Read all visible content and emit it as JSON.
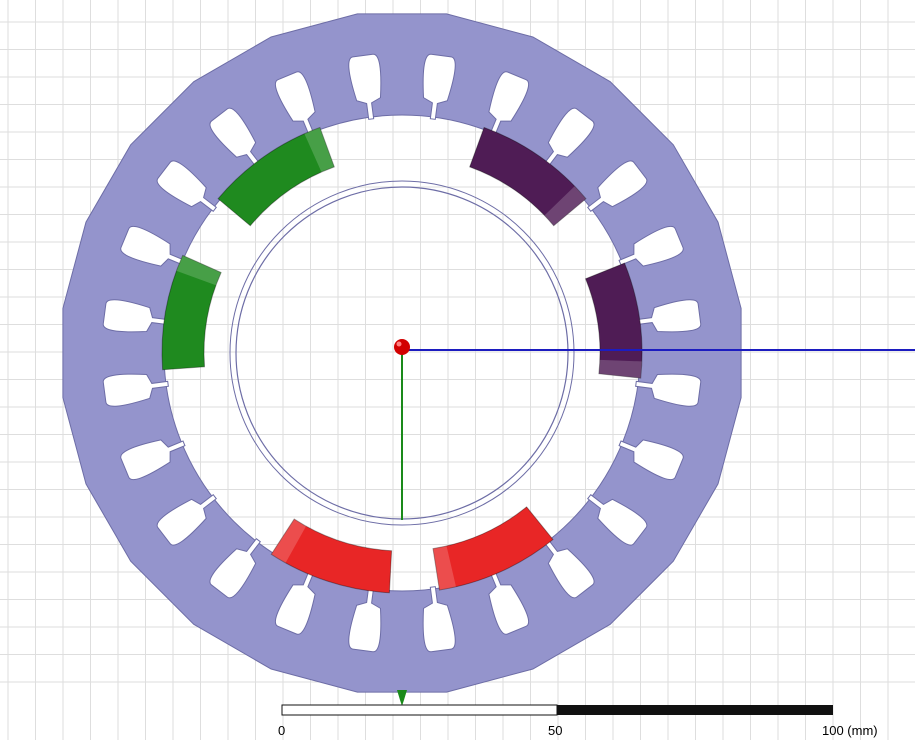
{
  "colors": {
    "background": "#ffffff",
    "grid": "#dedede",
    "stator": "#9494cc",
    "stator_edge": "#6d6da6",
    "phase_a": "#1f8a1f",
    "phase_b": "#4f1c55",
    "phase_c": "#e82626",
    "x_axis": "#1c1cc0",
    "y_axis": "#1a8a1a",
    "origin": "#d20000",
    "scale_dark": "#111111"
  },
  "icons": {
    "origin": "origin-sphere-icon",
    "z_axis": "z-axis-arrow-icon"
  },
  "scale_bar": {
    "label_0": "0",
    "label_50": "50",
    "label_100": "100 (mm)"
  }
}
